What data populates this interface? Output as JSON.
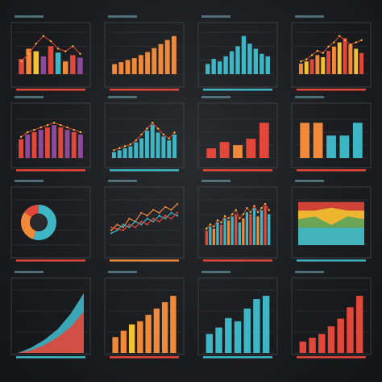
{
  "palette": {
    "background": "#1b1c1f",
    "teal": "#3fb6c6",
    "orange": "#f08a3a",
    "red": "#e2473a",
    "purple": "#8b4a9a",
    "yellow": "#f2c230",
    "green": "#5aa35a"
  },
  "chart_data": [
    {
      "type": "bar",
      "values": [
        12,
        20,
        18,
        14,
        22,
        17,
        10,
        15,
        13
      ],
      "colors": [
        "#e2473a",
        "#f08a3a",
        "#f2c230",
        "#8b4a9a",
        "#e2473a",
        "#3fb6c6",
        "#f08a3a",
        "#e2473a",
        "#8b4a9a"
      ],
      "trend": [
        10,
        16,
        24,
        30,
        26,
        20,
        18,
        22,
        16
      ],
      "accent": "#e2473a"
    },
    {
      "type": "bar",
      "values": [
        10,
        12,
        14,
        16,
        19,
        22,
        26,
        30,
        34,
        38
      ],
      "colors": [
        "#f08a3a"
      ],
      "accent": "#e2473a"
    },
    {
      "type": "bar",
      "values": [
        8,
        12,
        10,
        14,
        18,
        22,
        30,
        24,
        20,
        16,
        14
      ],
      "colors": [
        "#3fb6c6"
      ],
      "accent": "#3fb6c6"
    },
    {
      "type": "bar",
      "values": [
        10,
        12,
        14,
        18,
        16,
        22,
        26,
        30,
        34,
        28,
        24,
        20
      ],
      "colors": [
        "#f08a3a",
        "#f2c230",
        "#e2473a"
      ],
      "trend": [
        12,
        14,
        18,
        22,
        20,
        26,
        30,
        36,
        32,
        28,
        30,
        32
      ],
      "accent": "#e2473a"
    },
    {
      "type": "bar",
      "values": [
        16,
        20,
        22,
        24,
        26,
        28,
        26,
        24,
        22,
        20
      ],
      "colors": [
        "#e2473a",
        "#8b4a9a"
      ],
      "trend": [
        18,
        22,
        24,
        26,
        28,
        30,
        28,
        26,
        24,
        22
      ],
      "accent": "#e2473a"
    },
    {
      "type": "bar",
      "values": [
        6,
        8,
        10,
        12,
        16,
        20,
        28,
        34,
        26,
        22,
        18,
        24
      ],
      "colors": [
        "#3fb6c6"
      ],
      "trend": [
        8,
        10,
        12,
        14,
        18,
        24,
        30,
        36,
        30,
        24,
        20,
        26
      ],
      "accent": "#3fb6c6"
    },
    {
      "type": "bar",
      "values": [
        6,
        10,
        8,
        12,
        22
      ],
      "colors": [
        "#e2473a",
        "#e2473a",
        "#f08a3a",
        "#e2473a",
        "#e2473a"
      ],
      "accent": "#e2473a"
    },
    {
      "type": "bar",
      "values": [
        22,
        22,
        14,
        14,
        22
      ],
      "colors": [
        "#f08a3a",
        "#f08a3a",
        "#3fb6c6",
        "#3fb6c6",
        "#3fb6c6"
      ],
      "accent": "#e2473a"
    },
    {
      "type": "pie",
      "values": [
        55,
        30,
        15
      ],
      "colors": [
        "#3fb6c6",
        "#f08a3a",
        "#e2473a"
      ],
      "accent": "#e2473a"
    },
    {
      "type": "line",
      "series": [
        {
          "values": [
            10,
            14,
            12,
            18,
            16,
            22,
            20,
            24,
            22,
            26,
            24,
            28
          ],
          "color": "#f08a3a"
        },
        {
          "values": [
            8,
            10,
            14,
            12,
            16,
            14,
            18,
            16,
            20,
            18,
            22,
            20
          ],
          "color": "#3fb6c6"
        },
        {
          "values": [
            12,
            11,
            10,
            14,
            12,
            16,
            14,
            18,
            16,
            20,
            18,
            22
          ],
          "color": "#e2473a"
        }
      ],
      "accent": "#f08a3a"
    },
    {
      "type": "bar",
      "values": [
        14,
        18,
        16,
        22,
        20,
        26,
        24,
        28,
        30,
        22,
        26,
        32,
        30,
        36,
        28,
        34,
        38,
        30
      ],
      "colors": [
        "#e2473a",
        "#3fb6c6",
        "#f08a3a",
        "#3fb6c6"
      ],
      "trend": [
        16,
        20,
        18,
        24,
        22,
        28,
        26,
        30,
        34,
        26,
        30,
        36,
        32,
        38,
        32,
        36,
        40,
        34
      ],
      "accent": "#e2473a"
    },
    {
      "type": "area",
      "series": [
        {
          "values": [
            30,
            30,
            30,
            30,
            30
          ],
          "color": "#e2473a"
        },
        {
          "values": [
            24,
            24,
            26,
            24,
            24
          ],
          "color": "#f2c230"
        },
        {
          "values": [
            18,
            20,
            14,
            20,
            18
          ],
          "color": "#5aa35a"
        },
        {
          "values": [
            12,
            12,
            12,
            12,
            12
          ],
          "color": "#3fb6c6"
        }
      ],
      "accent": "#3fb6c6"
    },
    {
      "type": "area",
      "series": [
        {
          "values": [
            0,
            4,
            10,
            18,
            30,
            46
          ],
          "color": "#3fb6c6"
        },
        {
          "values": [
            0,
            2,
            6,
            12,
            20,
            32
          ],
          "color": "#e2473a"
        }
      ],
      "accent": "#3fb6c6"
    },
    {
      "type": "bar",
      "values": [
        10,
        14,
        18,
        20,
        24,
        28,
        32,
        36
      ],
      "colors": [
        "#f08a3a",
        "#f08a3a",
        "#f2c230",
        "#f08a3a",
        "#f08a3a",
        "#f08a3a",
        "#f08a3a",
        "#f08a3a"
      ],
      "accent": "#e2473a"
    },
    {
      "type": "bar",
      "values": [
        12,
        16,
        22,
        20,
        28,
        34,
        36
      ],
      "colors": [
        "#3fb6c6"
      ],
      "accent": "#3fb6c6"
    },
    {
      "type": "bar",
      "values": [
        6,
        8,
        10,
        14,
        18,
        24,
        30
      ],
      "colors": [
        "#e2473a"
      ],
      "accent": "#e2473a"
    }
  ]
}
